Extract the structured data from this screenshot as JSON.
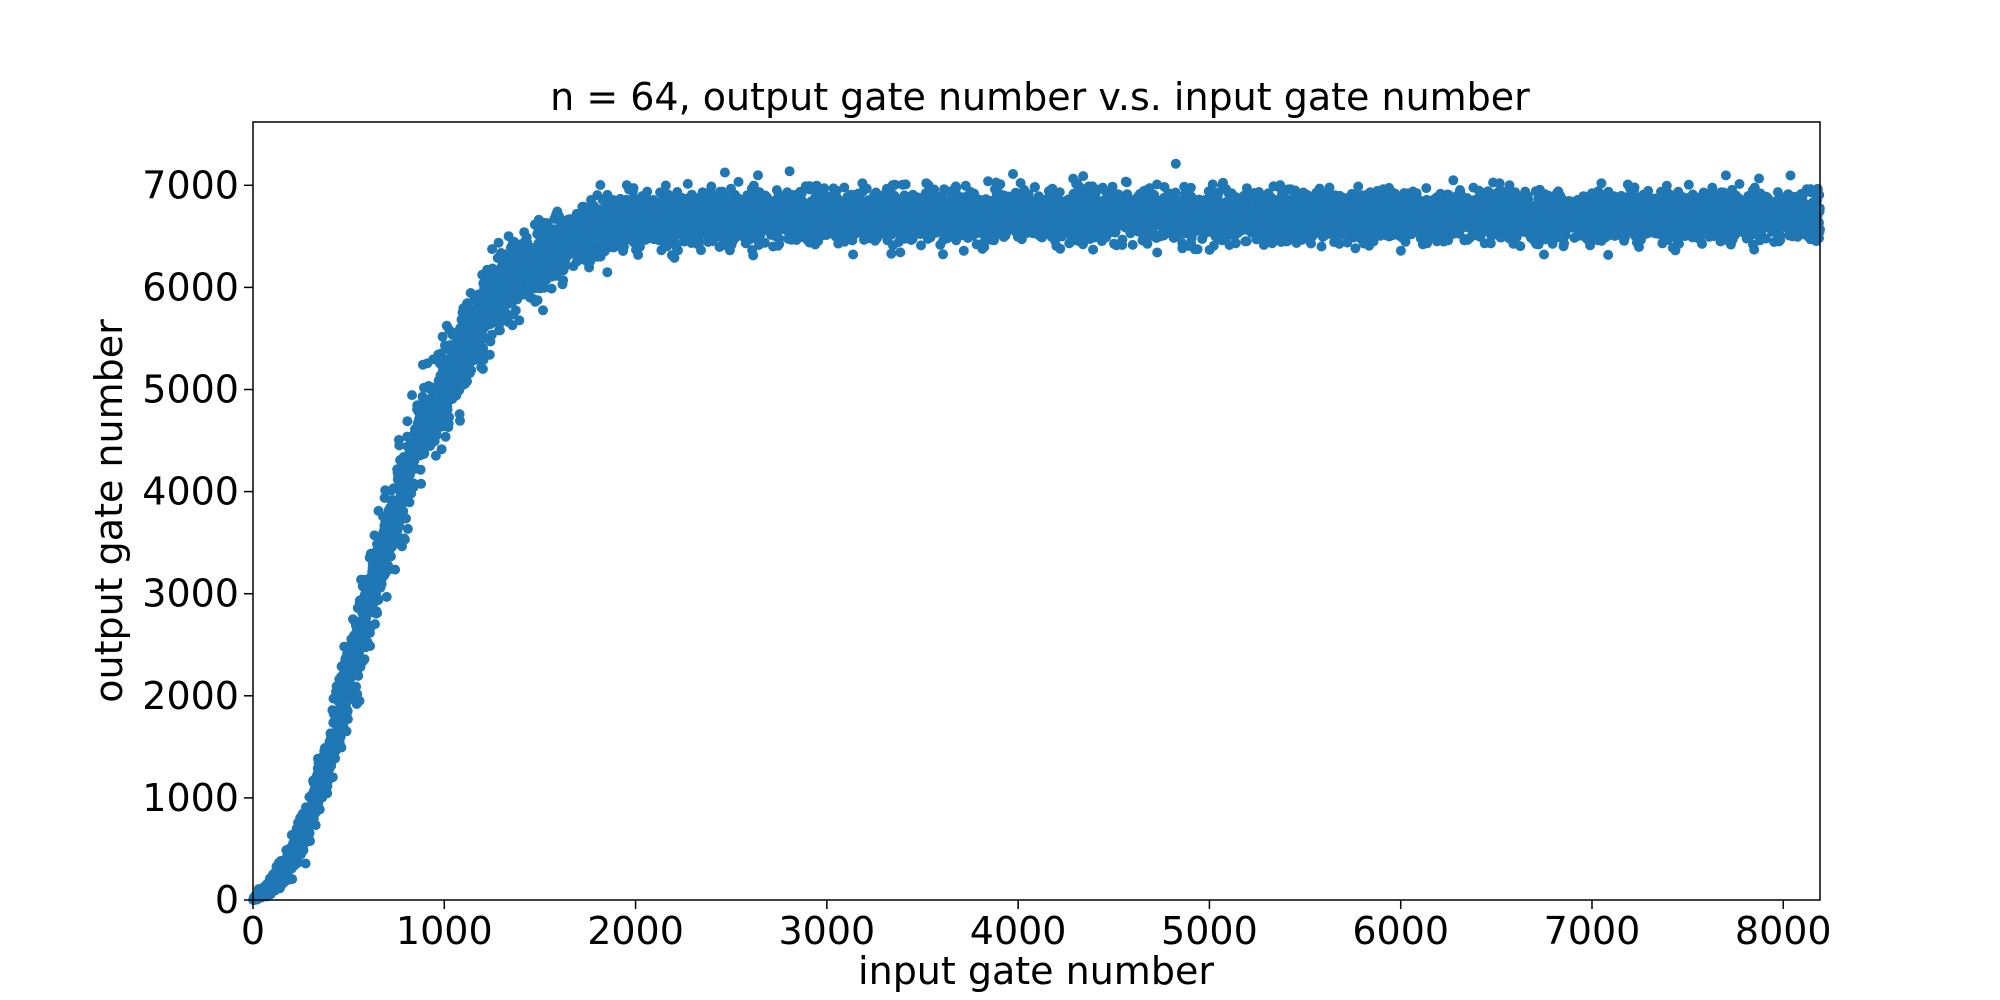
{
  "chart_data": {
    "type": "scatter",
    "title": "n = 64, output gate number v.s. input gate number",
    "xlabel": "input gate number",
    "ylabel": "output gate number",
    "xlim": [
      0,
      8192
    ],
    "ylim": [
      0,
      7620
    ],
    "x_ticks": [
      0,
      1000,
      2000,
      3000,
      4000,
      5000,
      6000,
      7000,
      8000
    ],
    "y_ticks": [
      0,
      1000,
      2000,
      3000,
      4000,
      5000,
      6000,
      7000
    ],
    "x_tick_labels": [
      "0",
      "1000",
      "2000",
      "3000",
      "4000",
      "5000",
      "6000",
      "7000",
      "8000"
    ],
    "y_tick_labels": [
      "0",
      "1000",
      "2000",
      "3000",
      "4000",
      "5000",
      "6000",
      "7000"
    ],
    "grid": false,
    "legend": "none",
    "marker_color": "#1f77b4",
    "series": [
      {
        "trend_points": [
          [
            0,
            0
          ],
          [
            100,
            140
          ],
          [
            200,
            400
          ],
          [
            300,
            850
          ],
          [
            400,
            1450
          ],
          [
            500,
            2150
          ],
          [
            600,
            2850
          ],
          [
            700,
            3500
          ],
          [
            800,
            4150
          ],
          [
            900,
            4650
          ],
          [
            1000,
            5000
          ],
          [
            1100,
            5400
          ],
          [
            1200,
            5700
          ],
          [
            1300,
            5950
          ],
          [
            1400,
            6150
          ],
          [
            1500,
            6300
          ],
          [
            1600,
            6420
          ],
          [
            1700,
            6520
          ],
          [
            1800,
            6600
          ],
          [
            1900,
            6630
          ],
          [
            2000,
            6660
          ],
          [
            3000,
            6700
          ],
          [
            4000,
            6710
          ],
          [
            5000,
            6700
          ],
          [
            6000,
            6700
          ],
          [
            7000,
            6700
          ],
          [
            8192,
            6700
          ]
        ],
        "spread_points": [
          [
            0,
            20
          ],
          [
            200,
            150
          ],
          [
            500,
            400
          ],
          [
            1000,
            400
          ],
          [
            1500,
            300
          ],
          [
            2000,
            230
          ],
          [
            8192,
            200
          ]
        ],
        "point_count": 8192
      }
    ]
  }
}
